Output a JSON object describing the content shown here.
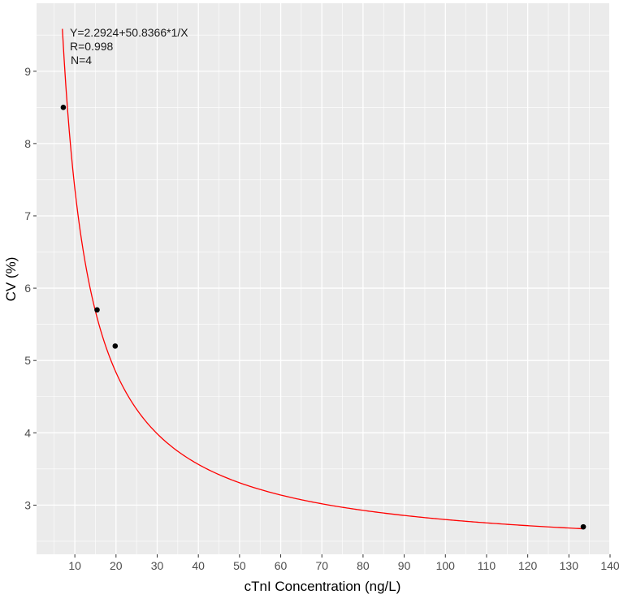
{
  "chart_data": {
    "type": "scatter",
    "title": "",
    "xlabel": "cTnI Concentration (ng/L)",
    "ylabel": "CV (%)",
    "xlim": [
      0.7,
      139.8
    ],
    "ylim": [
      2.32,
      9.94
    ],
    "xticks": [
      10,
      20,
      30,
      40,
      50,
      60,
      70,
      80,
      90,
      100,
      110,
      120,
      130,
      140
    ],
    "yticks": [
      3,
      4,
      5,
      6,
      7,
      8,
      9
    ],
    "grid": true,
    "points": [
      {
        "x": 7.2,
        "y": 8.5
      },
      {
        "x": 15.4,
        "y": 5.7
      },
      {
        "x": 19.8,
        "y": 5.2
      },
      {
        "x": 133.5,
        "y": 2.7
      }
    ],
    "fit": {
      "model": "Y = a + b/X",
      "a": 2.2924,
      "b": 50.8366,
      "x_range": [
        6.97,
        133.5
      ],
      "color": "#ff0000"
    },
    "annotations": [
      "Y=2.2924+50.8366*1/X",
      "R=0.998",
      "N=4"
    ],
    "colors": {
      "panel": "#ebebeb",
      "grid": "#ffffff",
      "point": "#000000",
      "tick_text": "#4d4d4d"
    }
  }
}
